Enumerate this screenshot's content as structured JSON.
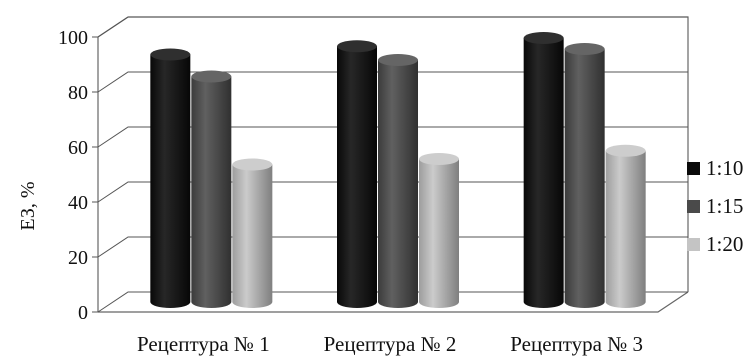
{
  "chart_data": {
    "type": "bar",
    "categories": [
      "Рецептура № 1",
      "Рецептура № 2",
      "Рецептура № 3"
    ],
    "series": [
      {
        "name": "1:10",
        "values": [
          90,
          93,
          96
        ],
        "color": "#0a0a0a"
      },
      {
        "name": "1:15",
        "values": [
          82,
          88,
          92
        ],
        "color": "#4a4a4a"
      },
      {
        "name": "1:20",
        "values": [
          50,
          52,
          55
        ],
        "color": "#c4c4c4"
      }
    ],
    "xlabel": "",
    "ylabel": "ЕЗ, %",
    "ylim": [
      0,
      100
    ],
    "yticks": [
      0,
      20,
      40,
      60,
      80,
      100
    ],
    "grid": true,
    "legend": "right"
  }
}
